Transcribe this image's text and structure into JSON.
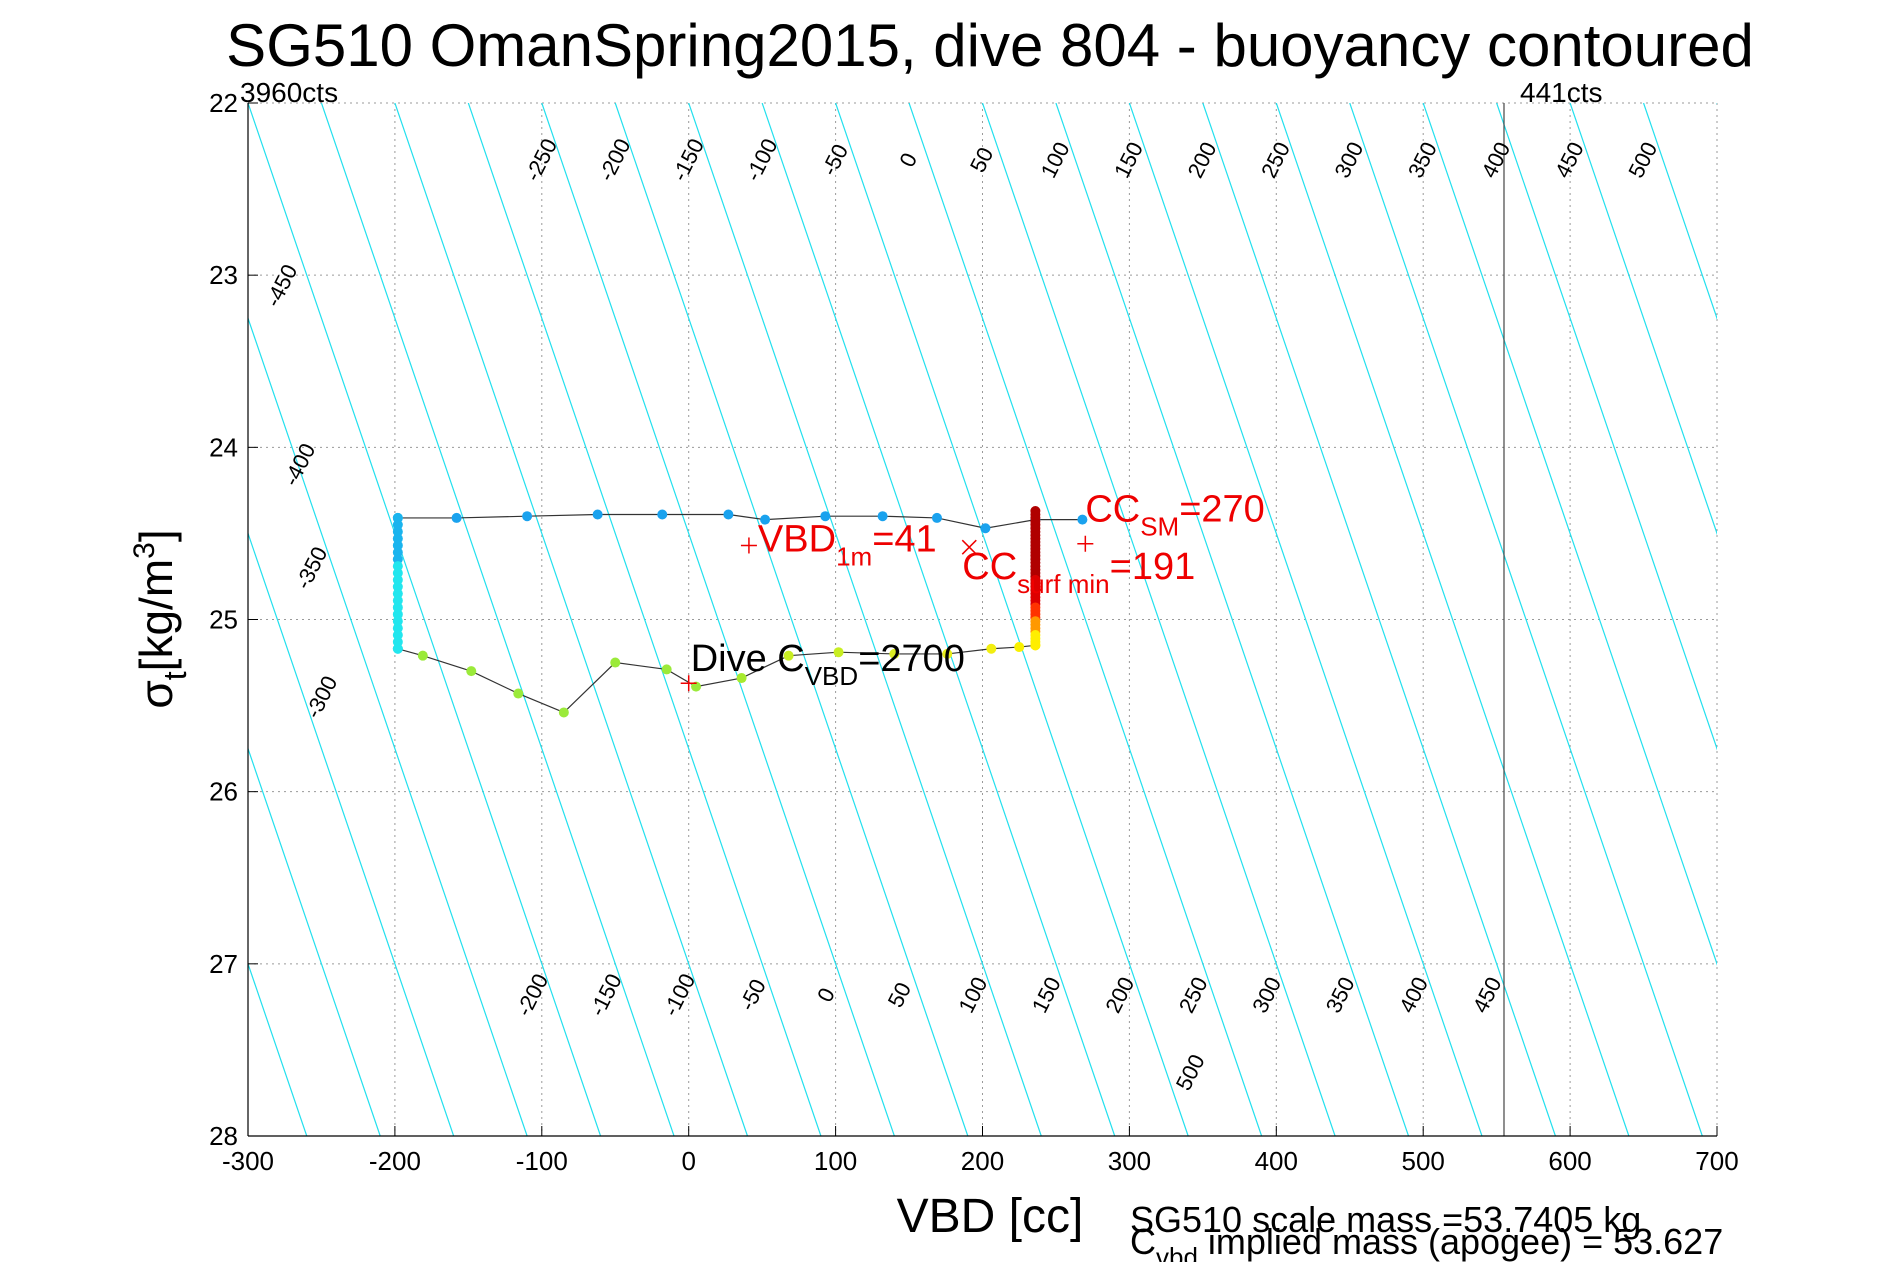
{
  "chart_data": {
    "type": "scatter",
    "title": "SG510 OmanSpring2015, dive 804 - buoyancy contoured",
    "xlabel": "VBD [cc]",
    "ylabel_main": "σ",
    "ylabel_sub": "t",
    "ylabel_units": "[kg/m",
    "ylabel_sup": "3",
    "ylabel_close": "]",
    "xlim": [
      -300,
      700
    ],
    "ylim": [
      22,
      28
    ],
    "y_reversed": true,
    "grid": true,
    "x_ticks": [
      "-300",
      "-200",
      "-100",
      "0",
      "100",
      "200",
      "300",
      "400",
      "500",
      "600",
      "700"
    ],
    "y_ticks": [
      "22",
      "23",
      "24",
      "25",
      "26",
      "27",
      "28"
    ],
    "left_limit_label": "3960cts",
    "right_limit_label": "441cts",
    "right_limit_x": 555,
    "contour_labels_top": [
      "-250",
      "-200",
      "-150",
      "-100",
      "-50",
      "0",
      "50",
      "100",
      "150",
      "200",
      "250",
      "300",
      "350",
      "400",
      "450",
      "500"
    ],
    "contour_labels_left": [
      "-450",
      "-400",
      "-350",
      "-300"
    ],
    "contour_labels_bottom": [
      "-200",
      "-150",
      "-100",
      "-50",
      "0",
      "50",
      "100",
      "150",
      "200",
      "250",
      "300",
      "350",
      "400",
      "450",
      "500"
    ],
    "contour_colors": {
      "regular": "#22e0ee",
      "zero": "#1010e0",
      "highlight": "#ee22ee"
    },
    "trace_upper": [
      {
        "x": -198,
        "y": 24.41
      },
      {
        "x": -158,
        "y": 24.41
      },
      {
        "x": -110,
        "y": 24.4
      },
      {
        "x": -62,
        "y": 24.39
      },
      {
        "x": -18,
        "y": 24.39
      },
      {
        "x": 27,
        "y": 24.39
      },
      {
        "x": 52,
        "y": 24.42
      },
      {
        "x": 93,
        "y": 24.4
      },
      {
        "x": 132,
        "y": 24.4
      },
      {
        "x": 169,
        "y": 24.41
      },
      {
        "x": 202,
        "y": 24.47
      },
      {
        "x": 236,
        "y": 24.42
      },
      {
        "x": 268,
        "y": 24.42
      }
    ],
    "trace_lower": [
      {
        "x": -198,
        "y": 25.17
      },
      {
        "x": -181,
        "y": 25.21
      },
      {
        "x": -148,
        "y": 25.3
      },
      {
        "x": -116,
        "y": 25.43
      },
      {
        "x": -85,
        "y": 25.54
      },
      {
        "x": -50,
        "y": 25.25
      },
      {
        "x": -15,
        "y": 25.29
      },
      {
        "x": 5,
        "y": 25.39
      },
      {
        "x": 36,
        "y": 25.34
      },
      {
        "x": 68,
        "y": 25.21
      },
      {
        "x": 102,
        "y": 25.19
      },
      {
        "x": 140,
        "y": 25.2
      },
      {
        "x": 176,
        "y": 25.2
      },
      {
        "x": 206,
        "y": 25.17
      },
      {
        "x": 225,
        "y": 25.16
      },
      {
        "x": 236,
        "y": 25.15
      }
    ],
    "trace_left_column": {
      "x": -198,
      "y_from": 24.41,
      "y_to": 25.17
    },
    "trace_right_column": {
      "x": 236,
      "y_from": 24.37,
      "y_to": 25.15
    },
    "annotations": {
      "vbd_1m": {
        "main": "VBD",
        "sub": "1m",
        "rest": "=41",
        "x": 41,
        "y": 24.57
      },
      "cc_sm": {
        "main": "CC",
        "sub": "SM",
        "rest": "=270",
        "x": 270,
        "y": 24.56
      },
      "cc_surf": {
        "main": "CC",
        "sub": "surf min",
        "rest": "=191",
        "x": 191,
        "y": 24.58
      },
      "dive_c": {
        "main": "Dive C",
        "sub": "VBD",
        "rest": "=2700",
        "x": 0,
        "y": 25.37
      }
    },
    "footer_line1": "SG510 scale mass =53.7405 kg",
    "footer_line2_main": "C",
    "footer_line2_sub": "vbd",
    "footer_line2_rest": " implied mass (apogee) = 53.627"
  }
}
